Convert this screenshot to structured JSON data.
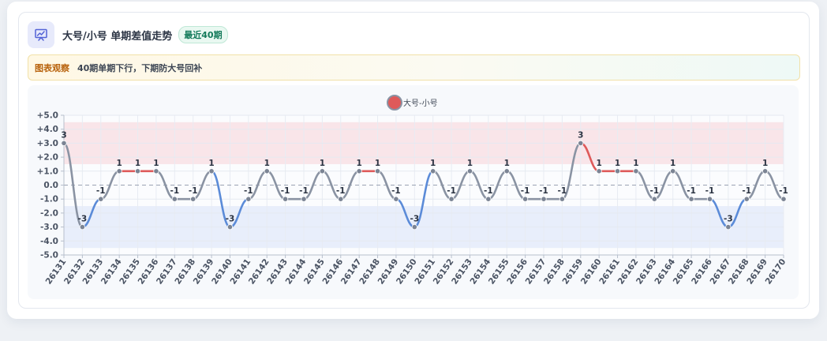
{
  "header": {
    "title": "大号/小号 单期差值走势",
    "badge": "最近40期",
    "icon": "chart-line-icon"
  },
  "insight": {
    "tag": "图表观察",
    "text": "40期单期下行，下期防大号回补"
  },
  "colors": {
    "up": "#de5a5a",
    "down": "#5b8bd8",
    "flat": "#8a93a3",
    "upper_band": "#f8dde2",
    "lower_band": "#e2e9fa",
    "accent": "#5363d6"
  },
  "chart_data": {
    "type": "line",
    "title": "",
    "xlabel": "",
    "ylabel": "",
    "legend": {
      "label": "大号-小号",
      "position": "top-center"
    },
    "ylim": [
      -5,
      5
    ],
    "y_ticks": [
      "+5.0",
      "+4.0",
      "+3.0",
      "+2.0",
      "+1.0",
      "0.0",
      "-1.0",
      "-2.0",
      "-3.0",
      "-4.0",
      "-5.0"
    ],
    "categories": [
      "26131",
      "26132",
      "26133",
      "26134",
      "26135",
      "26136",
      "26137",
      "26138",
      "26139",
      "26140",
      "26141",
      "26142",
      "26143",
      "26144",
      "26145",
      "26146",
      "26147",
      "26148",
      "26149",
      "26150",
      "26151",
      "26152",
      "26153",
      "26154",
      "26155",
      "26156",
      "26157",
      "26158",
      "26159",
      "26160",
      "26161",
      "26162",
      "26163",
      "26164",
      "26165",
      "26166",
      "26167",
      "26168",
      "26169",
      "26170"
    ],
    "series": [
      {
        "name": "大号-小号",
        "values": [
          3,
          -3,
          -1,
          1,
          1,
          1,
          -1,
          -1,
          1,
          -3,
          -1,
          1,
          -1,
          -1,
          1,
          -1,
          1,
          1,
          -1,
          -3,
          1,
          -1,
          1,
          -1,
          1,
          -1,
          -1,
          -1,
          3,
          1,
          1,
          1,
          -1,
          1,
          -1,
          -1,
          -3,
          -1,
          1,
          -1
        ]
      }
    ],
    "data_labels": [
      "3",
      "-3",
      "-1",
      "1",
      "1",
      "1",
      "-1",
      "-1",
      "1",
      "-3",
      "-1",
      "1",
      "-1",
      "-1",
      "1",
      "-1",
      "1",
      "1",
      "-1",
      "-3",
      "1",
      "-1",
      "1",
      "-1",
      "1",
      "-1",
      "-1",
      "-1",
      "3",
      "1",
      "1",
      "1",
      "-1",
      "1",
      "-1",
      "-1",
      "-3",
      "-1",
      "1",
      "-1"
    ],
    "bands": [
      {
        "name": "upper",
        "from": 1.5,
        "to": 4.5
      },
      {
        "name": "lower",
        "from": -4.5,
        "to": -1.5
      }
    ],
    "grid": true
  }
}
